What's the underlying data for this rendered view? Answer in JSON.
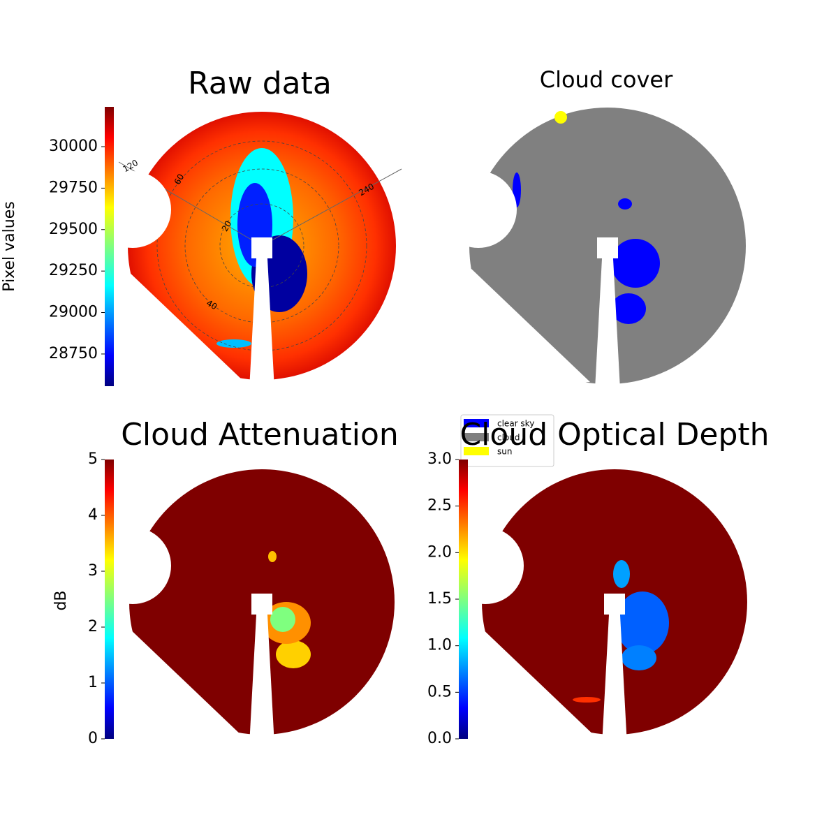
{
  "chart_data": [
    {
      "type": "image",
      "title": "Raw data",
      "colorbar_label": "Pixel values",
      "ylim": [
        28556,
        30240
      ],
      "yticks": [
        28750,
        29000,
        29250,
        29500,
        29750,
        30000
      ],
      "annotations": [
        "120",
        "240",
        "20",
        "40",
        "60"
      ]
    },
    {
      "type": "image",
      "title": "Cloud cover",
      "legend": [
        {
          "name": "clear sky",
          "color": "#0000ff"
        },
        {
          "name": "cloud",
          "color": "#808080"
        },
        {
          "name": "sun",
          "color": "#ffff00"
        }
      ]
    },
    {
      "type": "image",
      "title": "Cloud Attenuation",
      "colorbar_label": "dB",
      "ylim": [
        0,
        5
      ],
      "yticks": [
        0,
        1,
        2,
        3,
        4,
        5
      ]
    },
    {
      "type": "image",
      "title": "Cloud Optical Depth",
      "ylim": [
        0,
        3
      ],
      "yticks": [
        {
          "value": 0,
          "label": "0.0"
        },
        {
          "value": 0.5,
          "label": "0.5"
        },
        {
          "value": 1,
          "label": "1.0"
        },
        {
          "value": 1.5,
          "label": "1.5"
        },
        {
          "value": 2,
          "label": "2.0"
        },
        {
          "value": 2.5,
          "label": "2.5"
        },
        {
          "value": 3,
          "label": "3.0"
        }
      ]
    }
  ]
}
